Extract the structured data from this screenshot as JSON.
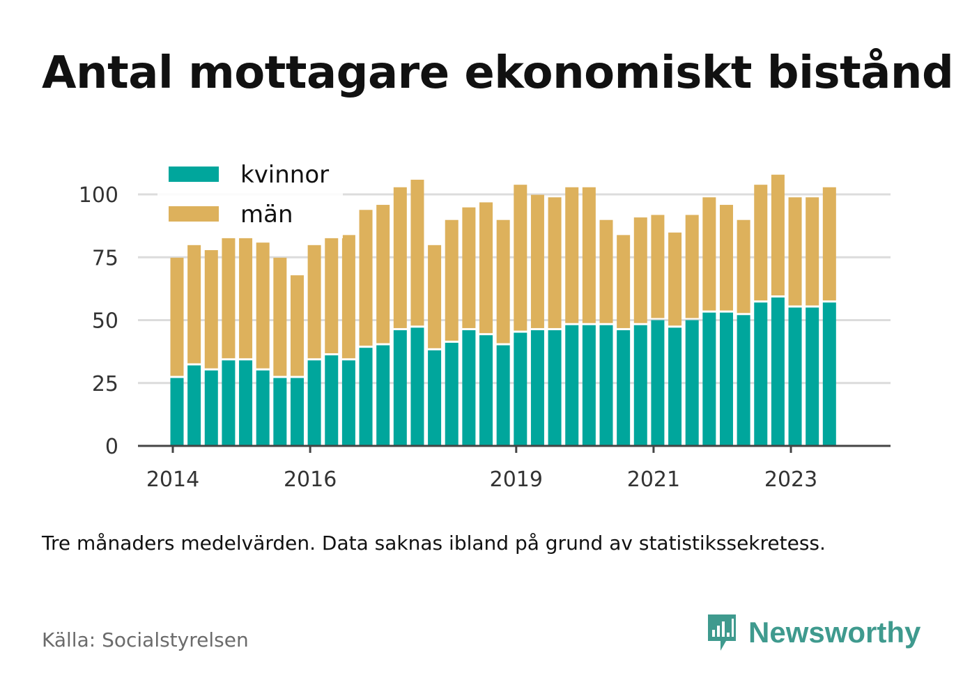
{
  "title": "Antal mottagare ekonomiskt bistånd",
  "note": "Tre månaders medelvärden. Data saknas ibland på grund av statistikssekretess.",
  "source": "Källa: Socialstyrelsen",
  "brand": "Newsworthy",
  "colors": {
    "kvinnor": "#00a69c",
    "man": "#ddb15c",
    "axis": "#444444",
    "grid": "#dcdcdc",
    "brand": "#3f9a8e"
  },
  "chart_data": {
    "type": "bar",
    "stacked": true,
    "ylim": [
      0,
      110
    ],
    "yticks": [
      0,
      25,
      50,
      75,
      100
    ],
    "xticks": [
      "2014",
      "2016",
      "2019",
      "2021",
      "2023"
    ],
    "xtick_positions": [
      0,
      8,
      20,
      28,
      36
    ],
    "legend": "top-left",
    "grid": true,
    "series": [
      {
        "name": "kvinnor",
        "values": [
          27,
          32,
          30,
          34,
          34,
          30,
          27,
          27,
          34,
          36,
          34,
          39,
          40,
          46,
          47,
          38,
          41,
          46,
          44,
          40,
          45,
          46,
          46,
          48,
          48,
          48,
          46,
          48,
          50,
          47,
          50,
          53,
          53,
          52,
          57,
          59,
          55,
          55,
          57
        ]
      },
      {
        "name": "män",
        "values": [
          47,
          47,
          47,
          48,
          48,
          50,
          47,
          40,
          45,
          46,
          49,
          54,
          55,
          56,
          58,
          41,
          48,
          48,
          52,
          49,
          58,
          53,
          52,
          54,
          54,
          41,
          37,
          42,
          41,
          37,
          41,
          45,
          42,
          37,
          46,
          48,
          43,
          43,
          45
        ]
      }
    ]
  }
}
